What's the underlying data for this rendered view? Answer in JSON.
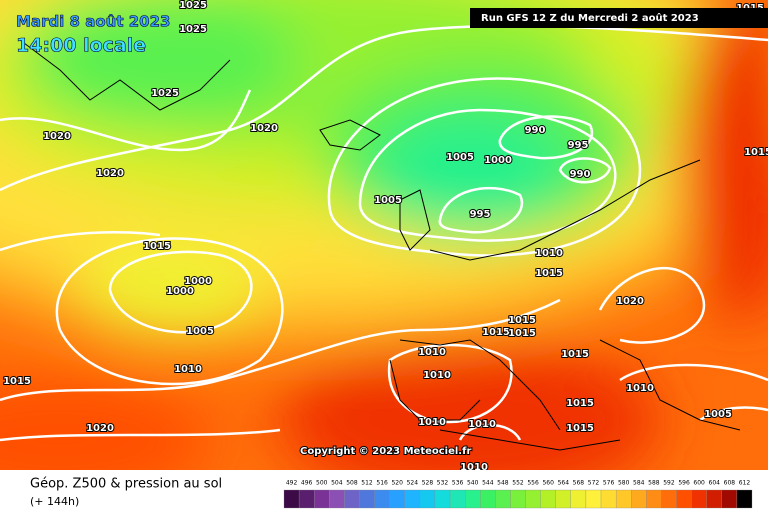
{
  "header": {
    "date": "Mardi 8 août 2023",
    "time": "14:00 locale",
    "run": "Run GFS 12 Z du Mercredi 2 août 2023"
  },
  "copyright": "Copyright © 2023 Meteociel.fr",
  "footer": {
    "title": "Géop. Z500 & pression au sol",
    "lead": "(+ 144h)"
  },
  "colorbar": {
    "ticks": [
      492,
      496,
      500,
      504,
      508,
      512,
      516,
      520,
      524,
      528,
      532,
      536,
      540,
      544,
      548,
      552,
      556,
      560,
      564,
      568,
      572,
      576,
      580,
      584,
      588,
      592,
      596,
      600,
      604,
      608,
      612
    ],
    "colors": [
      "#3c0a46",
      "#5a1e6e",
      "#7a3296",
      "#8c50b4",
      "#6e64c8",
      "#5078dc",
      "#3c8cf0",
      "#28a0ff",
      "#1eb4ff",
      "#14c8f0",
      "#14dcdc",
      "#1ee6b4",
      "#28f08c",
      "#3cf064",
      "#5af050",
      "#78f03c",
      "#96f032",
      "#b4f028",
      "#d2f028",
      "#f0f032",
      "#fff03c",
      "#ffdc32",
      "#ffc828",
      "#ffaa1e",
      "#ff8c14",
      "#ff6e0a",
      "#ff5000",
      "#f03200",
      "#d21e00",
      "#a00a00",
      "#000000"
    ]
  },
  "isobar_labels": [
    1025,
    1025,
    1025,
    1020,
    1020,
    1020,
    1015,
    1000,
    1000,
    1005,
    1010,
    1015,
    1020,
    1005,
    1000,
    990,
    995,
    990,
    1005,
    995,
    1010,
    1015,
    1020,
    1015,
    1015,
    1015,
    1010,
    1010,
    1015,
    1010,
    1015,
    1005,
    1010,
    1010,
    1015,
    1010,
    1015,
    1015
  ]
}
